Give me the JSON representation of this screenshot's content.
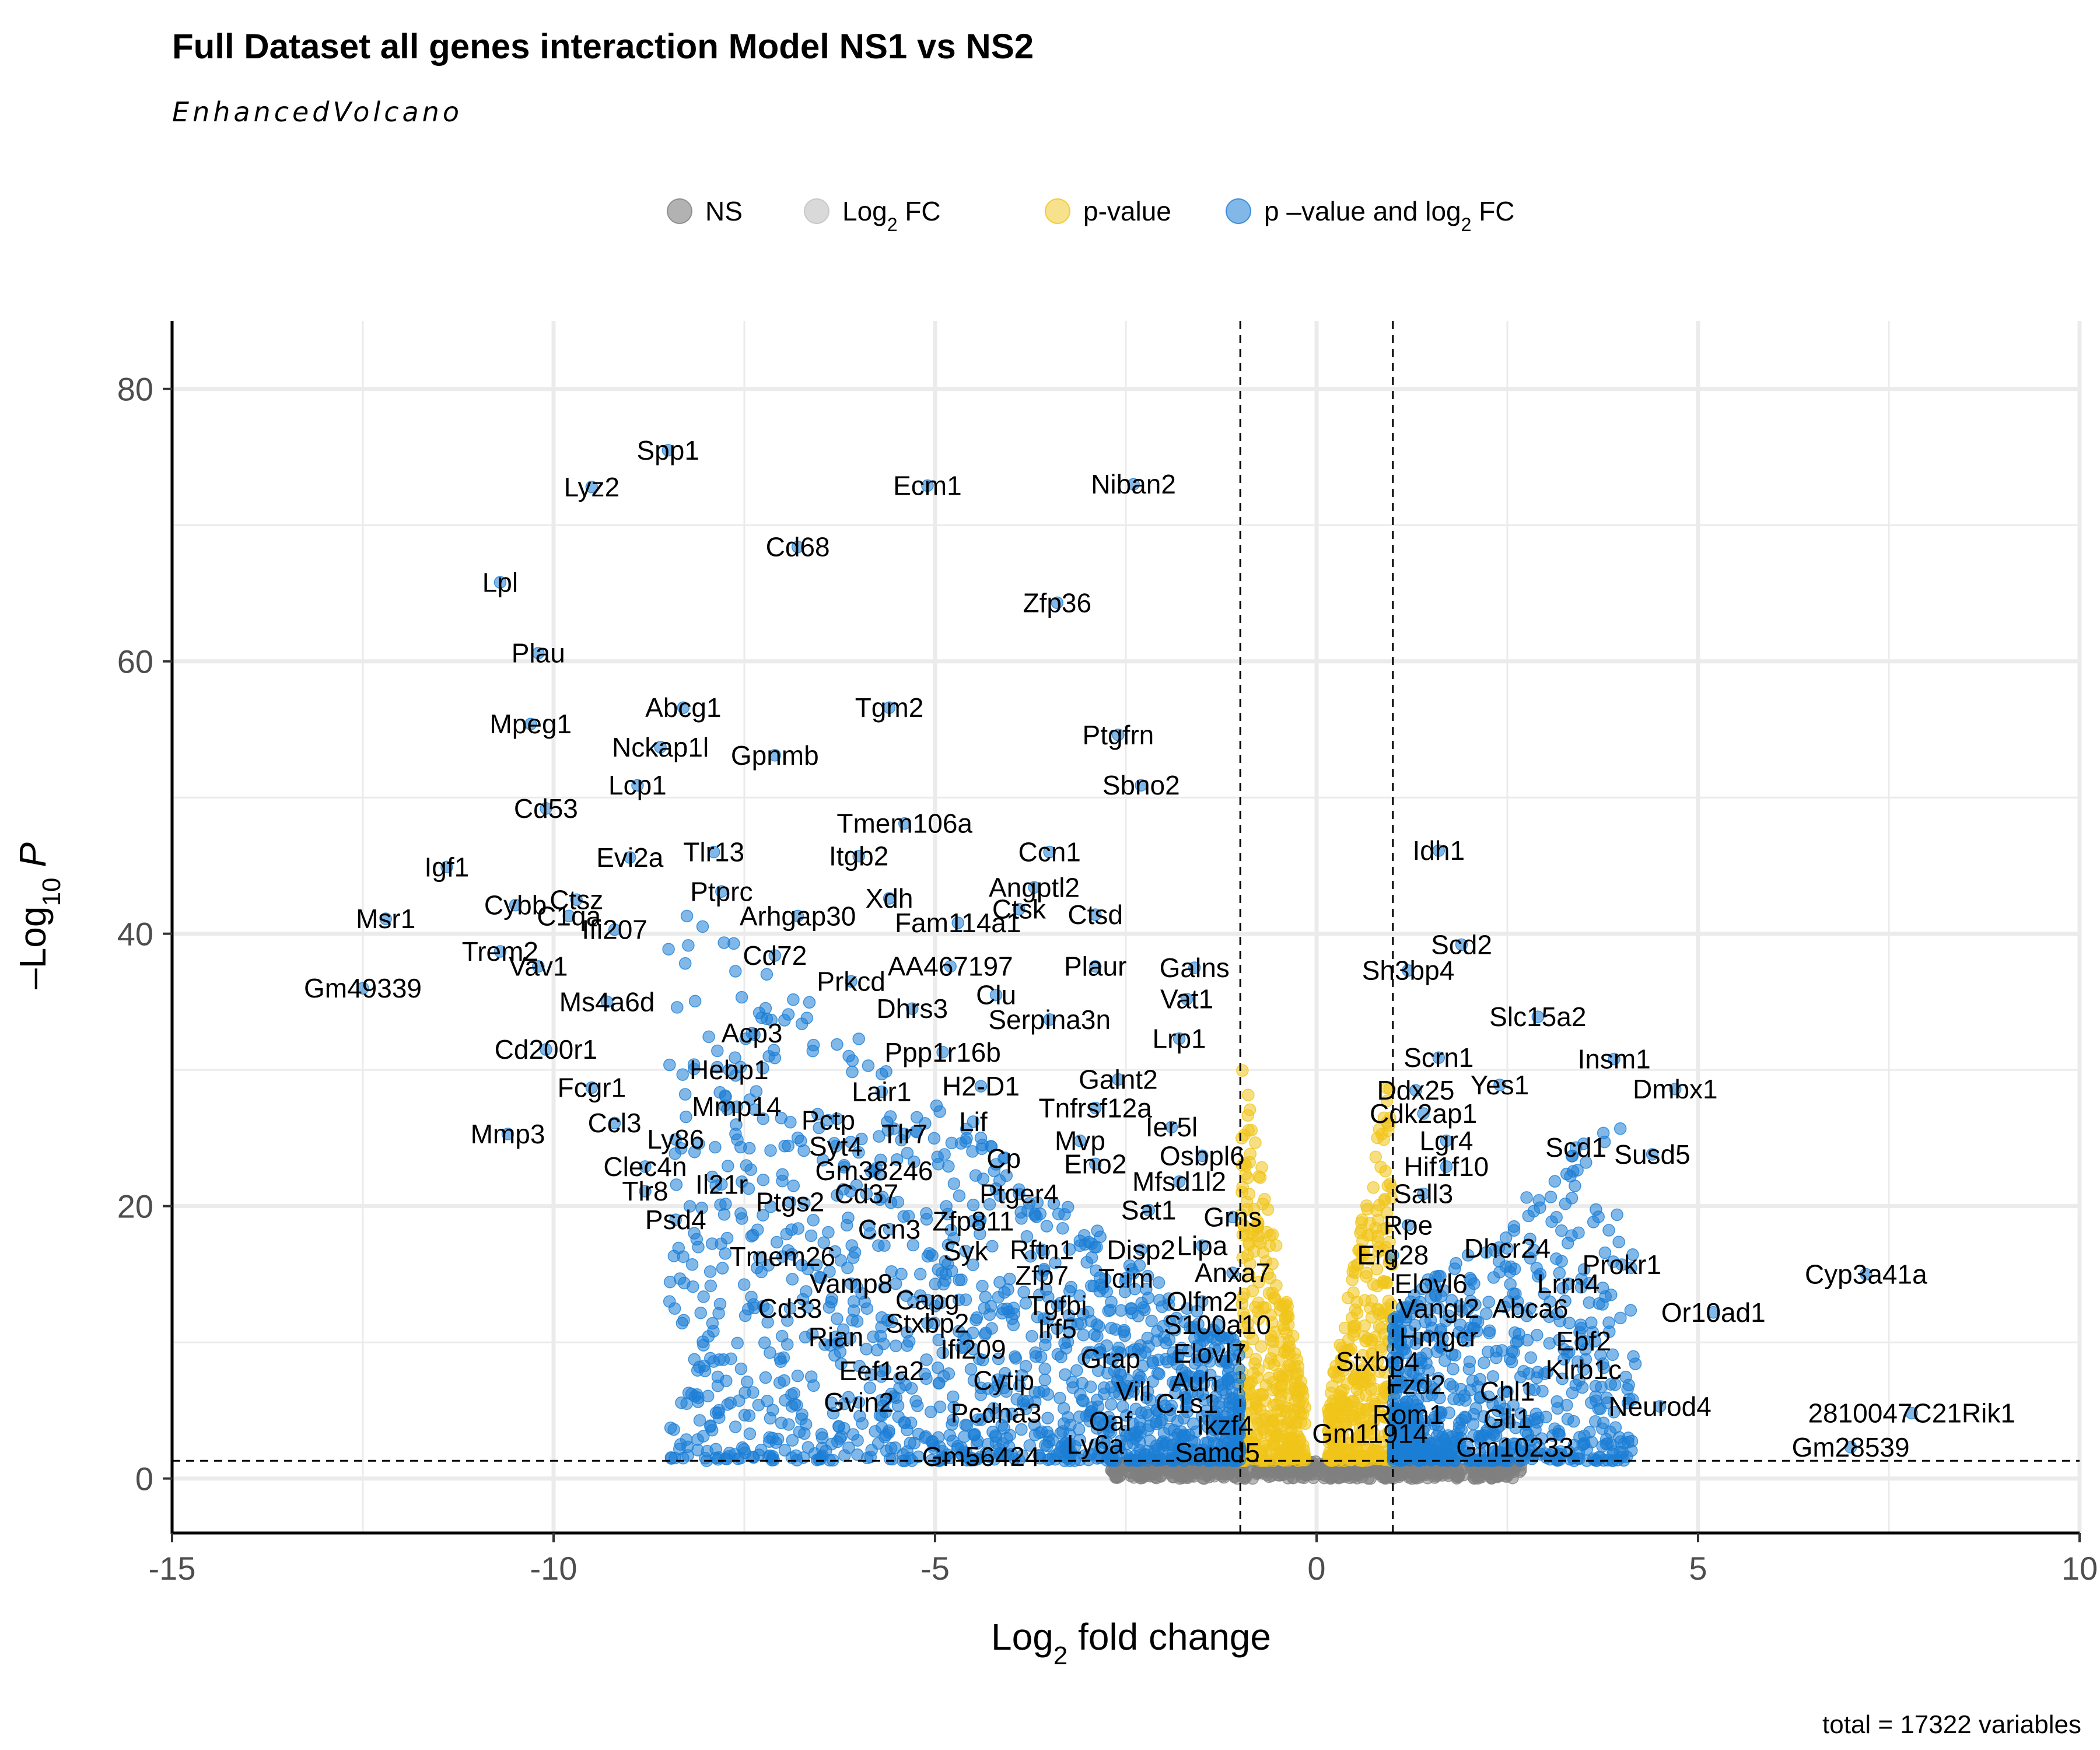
{
  "chart_data": {
    "type": "scatter",
    "title": "Full Dataset all genes interaction Model NS1 vs NS2",
    "subtitle": "EnhancedVolcano",
    "xlabel": "Log2 fold change",
    "ylabel": "-Log10 P",
    "xlim": [
      -15,
      10
    ],
    "ylim": [
      -4,
      85
    ],
    "xticks": [
      -15,
      -10,
      -5,
      0,
      5,
      10
    ],
    "yticks": [
      0,
      20,
      40,
      60,
      80
    ],
    "tick_labels_x": [
      "-15",
      "-10",
      "-5",
      "0",
      "5",
      "10"
    ],
    "tick_labels_y": [
      "0",
      "20",
      "40",
      "60",
      "80"
    ],
    "grid": true,
    "legend_position": "top",
    "thresholds": {
      "log2fc": [
        -1,
        1
      ],
      "neg_log10_p": 1.3
    },
    "caption": "total = 17322 variables",
    "legend": [
      {
        "name": "NS",
        "color": "#7f7f7f"
      },
      {
        "name": "Log2 FC",
        "color": "#bfbfbf"
      },
      {
        "name": "p-value",
        "color": "#f0c419"
      },
      {
        "name": "p –value and log2 FC",
        "color": "#1c7ed6"
      }
    ],
    "labeled_genes": [
      {
        "name": "Spp1",
        "x": -8.5,
        "y": 75.5
      },
      {
        "name": "Lyz2",
        "x": -9.5,
        "y": 72.8
      },
      {
        "name": "Ecm1",
        "x": -5.1,
        "y": 72.9
      },
      {
        "name": "Niban2",
        "x": -2.4,
        "y": 73.0
      },
      {
        "name": "Cd68",
        "x": -6.8,
        "y": 68.4
      },
      {
        "name": "Lpl",
        "x": -10.7,
        "y": 65.8
      },
      {
        "name": "Zfp36",
        "x": -3.4,
        "y": 64.3
      },
      {
        "name": "Plau",
        "x": -10.2,
        "y": 60.6
      },
      {
        "name": "Abcg1",
        "x": -8.3,
        "y": 56.6
      },
      {
        "name": "Tgm2",
        "x": -5.6,
        "y": 56.6
      },
      {
        "name": "Mpeg1",
        "x": -10.3,
        "y": 55.4
      },
      {
        "name": "Ptgfrn",
        "x": -2.6,
        "y": 54.6
      },
      {
        "name": "Nckap1l",
        "x": -8.6,
        "y": 53.7
      },
      {
        "name": "Gpnmb",
        "x": -7.1,
        "y": 53.1
      },
      {
        "name": "Sbno2",
        "x": -2.3,
        "y": 50.9
      },
      {
        "name": "Lcp1",
        "x": -8.9,
        "y": 50.9
      },
      {
        "name": "Cd53",
        "x": -10.1,
        "y": 49.2
      },
      {
        "name": "Tmem106a",
        "x": -5.4,
        "y": 48.1
      },
      {
        "name": "Ccn1",
        "x": -3.5,
        "y": 46.0
      },
      {
        "name": "Tlr13",
        "x": -7.9,
        "y": 46.0
      },
      {
        "name": "Itgb2",
        "x": -6.0,
        "y": 45.7
      },
      {
        "name": "Evi2a",
        "x": -9.0,
        "y": 45.6
      },
      {
        "name": "Idh1",
        "x": 1.6,
        "y": 46.1
      },
      {
        "name": "Igf1",
        "x": -11.4,
        "y": 44.9
      },
      {
        "name": "Ptprc",
        "x": -7.8,
        "y": 43.1
      },
      {
        "name": "Angptl2",
        "x": -3.7,
        "y": 43.4
      },
      {
        "name": "Xdh",
        "x": -5.6,
        "y": 42.6
      },
      {
        "name": "Ctsz",
        "x": -9.7,
        "y": 42.5
      },
      {
        "name": "Cybb",
        "x": -10.5,
        "y": 42.1
      },
      {
        "name": "Ctsk",
        "x": -3.9,
        "y": 41.8
      },
      {
        "name": "C1qa",
        "x": -9.8,
        "y": 41.3
      },
      {
        "name": "Msr1",
        "x": -12.2,
        "y": 41.1
      },
      {
        "name": "Arhgap30",
        "x": -6.8,
        "y": 41.3
      },
      {
        "name": "Ctsd",
        "x": -2.9,
        "y": 41.4
      },
      {
        "name": "Ifi207",
        "x": -9.2,
        "y": 40.3
      },
      {
        "name": "Fam114a1",
        "x": -4.7,
        "y": 40.8
      },
      {
        "name": "Trem2",
        "x": -10.7,
        "y": 38.7
      },
      {
        "name": "Scd2",
        "x": 1.9,
        "y": 39.2
      },
      {
        "name": "Cd72",
        "x": -7.1,
        "y": 38.4
      },
      {
        "name": "Plaur",
        "x": -2.9,
        "y": 37.6
      },
      {
        "name": "Vav1",
        "x": -10.2,
        "y": 37.6
      },
      {
        "name": "AA467197",
        "x": -4.8,
        "y": 37.6
      },
      {
        "name": "Galns",
        "x": -1.6,
        "y": 37.5
      },
      {
        "name": "Sh3bp4",
        "x": 1.2,
        "y": 37.3
      },
      {
        "name": "Prkcd",
        "x": -6.1,
        "y": 36.5
      },
      {
        "name": "Gm49339",
        "x": -12.5,
        "y": 36.0
      },
      {
        "name": "Clu",
        "x": -4.2,
        "y": 35.5
      },
      {
        "name": "Vat1",
        "x": -1.7,
        "y": 35.2
      },
      {
        "name": "Ms4a6d",
        "x": -9.3,
        "y": 35.0
      },
      {
        "name": "Dhrs3",
        "x": -5.3,
        "y": 34.5
      },
      {
        "name": "Slc15a2",
        "x": 2.9,
        "y": 33.9
      },
      {
        "name": "Serpina3n",
        "x": -3.5,
        "y": 33.7
      },
      {
        "name": "Acp3",
        "x": -7.4,
        "y": 32.7
      },
      {
        "name": "Lrp1",
        "x": -1.8,
        "y": 32.3
      },
      {
        "name": "Ppp1r16b",
        "x": -4.9,
        "y": 31.3
      },
      {
        "name": "Cd200r1",
        "x": -10.1,
        "y": 31.5
      },
      {
        "name": "Scrn1",
        "x": 1.6,
        "y": 30.9
      },
      {
        "name": "Insm1",
        "x": 3.9,
        "y": 30.8
      },
      {
        "name": "Hebp1",
        "x": -7.7,
        "y": 30.0
      },
      {
        "name": "Galnt2",
        "x": -2.6,
        "y": 29.3
      },
      {
        "name": "H2-D1",
        "x": -4.4,
        "y": 28.8
      },
      {
        "name": "Fcgr1",
        "x": -9.5,
        "y": 28.7
      },
      {
        "name": "Yes1",
        "x": 2.4,
        "y": 28.9
      },
      {
        "name": "Dmbx1",
        "x": 4.7,
        "y": 28.6
      },
      {
        "name": "Lair1",
        "x": -5.7,
        "y": 28.4
      },
      {
        "name": "Ddx25",
        "x": 1.3,
        "y": 28.5
      },
      {
        "name": "Tnfrsf12a",
        "x": -2.9,
        "y": 27.2
      },
      {
        "name": "Mmp14",
        "x": -7.6,
        "y": 27.3
      },
      {
        "name": "Cdk2ap1",
        "x": 1.4,
        "y": 26.8
      },
      {
        "name": "Pctp",
        "x": -6.4,
        "y": 26.3
      },
      {
        "name": "Ccl3",
        "x": -9.2,
        "y": 26.1
      },
      {
        "name": "Lif",
        "x": -4.5,
        "y": 26.2
      },
      {
        "name": "Ier5l",
        "x": -1.9,
        "y": 25.8
      },
      {
        "name": "Tlr7",
        "x": -5.4,
        "y": 25.3
      },
      {
        "name": "Mmp3",
        "x": -10.6,
        "y": 25.3
      },
      {
        "name": "Ly86",
        "x": -8.4,
        "y": 24.9
      },
      {
        "name": "Mvp",
        "x": -3.1,
        "y": 24.8
      },
      {
        "name": "Lgr4",
        "x": 1.7,
        "y": 24.8
      },
      {
        "name": "Scd1",
        "x": 3.4,
        "y": 24.3
      },
      {
        "name": "Syt4",
        "x": -6.3,
        "y": 24.4
      },
      {
        "name": "Susd5",
        "x": 4.4,
        "y": 23.8
      },
      {
        "name": "Osbpl6",
        "x": -1.5,
        "y": 23.7
      },
      {
        "name": "Cp",
        "x": -4.1,
        "y": 23.5
      },
      {
        "name": "Eno2",
        "x": -2.9,
        "y": 23.1
      },
      {
        "name": "Hif1f10",
        "x": 1.7,
        "y": 22.9
      },
      {
        "name": "Clec4n",
        "x": -8.8,
        "y": 22.9
      },
      {
        "name": "Gm38246",
        "x": -5.8,
        "y": 22.6
      },
      {
        "name": "Mfsd1l2",
        "x": -1.8,
        "y": 21.8
      },
      {
        "name": "Il21r",
        "x": -7.8,
        "y": 21.6
      },
      {
        "name": "Tlr8",
        "x": -8.8,
        "y": 21.1
      },
      {
        "name": "Cd37",
        "x": -5.9,
        "y": 20.9
      },
      {
        "name": "Ptger4",
        "x": -3.9,
        "y": 20.9
      },
      {
        "name": "Sall3",
        "x": 1.4,
        "y": 20.9
      },
      {
        "name": "Ptgs2",
        "x": -6.9,
        "y": 20.3
      },
      {
        "name": "Sat1",
        "x": -2.2,
        "y": 19.7
      },
      {
        "name": "Psd4",
        "x": -8.4,
        "y": 19.0
      },
      {
        "name": "Grns",
        "x": -1.1,
        "y": 19.2
      },
      {
        "name": "Zfp811",
        "x": -4.5,
        "y": 18.9
      },
      {
        "name": "Ccn3",
        "x": -5.6,
        "y": 18.3
      },
      {
        "name": "Rpe",
        "x": 1.2,
        "y": 18.6
      },
      {
        "name": "Dhcr24",
        "x": 2.5,
        "y": 16.9
      },
      {
        "name": "Syk",
        "x": -4.6,
        "y": 16.7
      },
      {
        "name": "Rftn1",
        "x": -3.6,
        "y": 16.8
      },
      {
        "name": "Disp2",
        "x": -2.3,
        "y": 16.8
      },
      {
        "name": "Lipa",
        "x": -1.5,
        "y": 17.1
      },
      {
        "name": "Tmem26",
        "x": -7.0,
        "y": 16.3
      },
      {
        "name": "Erg28",
        "x": 1.0,
        "y": 16.4
      },
      {
        "name": "Prokr1",
        "x": 4.0,
        "y": 15.7
      },
      {
        "name": "Cyp3a41a",
        "x": 7.2,
        "y": 15.0
      },
      {
        "name": "Anxa7",
        "x": -1.1,
        "y": 15.1
      },
      {
        "name": "Zfp7",
        "x": -3.6,
        "y": 14.9
      },
      {
        "name": "Tcim",
        "x": -2.5,
        "y": 14.7
      },
      {
        "name": "Lrrn4",
        "x": 3.3,
        "y": 14.3
      },
      {
        "name": "Elovl6",
        "x": 1.5,
        "y": 14.3
      },
      {
        "name": "Vamp8",
        "x": -6.1,
        "y": 14.3
      },
      {
        "name": "Olfm2",
        "x": -1.5,
        "y": 13.0
      },
      {
        "name": "Capg",
        "x": -5.1,
        "y": 13.1
      },
      {
        "name": "Tgfbi",
        "x": -3.4,
        "y": 12.7
      },
      {
        "name": "Vangl2",
        "x": 1.6,
        "y": 12.5
      },
      {
        "name": "Abca6",
        "x": 2.8,
        "y": 12.5
      },
      {
        "name": "Cd33",
        "x": -6.9,
        "y": 12.5
      },
      {
        "name": "Or10ad1",
        "x": 5.2,
        "y": 12.2
      },
      {
        "name": "S100a10",
        "x": -1.3,
        "y": 11.3
      },
      {
        "name": "Stxbp2",
        "x": -5.1,
        "y": 11.4
      },
      {
        "name": "Irf5",
        "x": -3.4,
        "y": 11.0
      },
      {
        "name": "Hmgcr",
        "x": 1.6,
        "y": 10.4
      },
      {
        "name": "Ebf2",
        "x": 3.5,
        "y": 10.1
      },
      {
        "name": "Rian",
        "x": -6.3,
        "y": 10.4
      },
      {
        "name": "Ifi209",
        "x": -4.5,
        "y": 9.5
      },
      {
        "name": "Elovl7",
        "x": -1.4,
        "y": 9.2
      },
      {
        "name": "Grap",
        "x": -2.7,
        "y": 8.8
      },
      {
        "name": "Stxbp4",
        "x": 0.8,
        "y": 8.6
      },
      {
        "name": "Klrb1c",
        "x": 3.5,
        "y": 8.0
      },
      {
        "name": "Eef1a2",
        "x": -5.7,
        "y": 7.9
      },
      {
        "name": "Cytip",
        "x": -4.1,
        "y": 7.2
      },
      {
        "name": "Auh",
        "x": -1.6,
        "y": 7.1
      },
      {
        "name": "Vill",
        "x": -2.4,
        "y": 6.4
      },
      {
        "name": "Fzd2",
        "x": 1.3,
        "y": 6.9
      },
      {
        "name": "Chl1",
        "x": 2.5,
        "y": 6.4
      },
      {
        "name": "Gvin2",
        "x": -6.0,
        "y": 5.6
      },
      {
        "name": "C1s1",
        "x": -1.7,
        "y": 5.5
      },
      {
        "name": "Neurod4",
        "x": 4.5,
        "y": 5.3
      },
      {
        "name": "Pcdha3",
        "x": -4.2,
        "y": 4.8
      },
      {
        "name": "Rom1",
        "x": 1.2,
        "y": 4.7
      },
      {
        "name": "2810047C21Rik1",
        "x": 7.8,
        "y": 4.8
      },
      {
        "name": "Oaf",
        "x": -2.7,
        "y": 4.2
      },
      {
        "name": "Gli1",
        "x": 2.5,
        "y": 4.4
      },
      {
        "name": "Ikzf4",
        "x": -1.2,
        "y": 3.9
      },
      {
        "name": "Gm11914",
        "x": 0.7,
        "y": 3.3
      },
      {
        "name": "Ly6a",
        "x": -2.9,
        "y": 2.5
      },
      {
        "name": "Gm10233",
        "x": 2.6,
        "y": 2.3
      },
      {
        "name": "Gm28539",
        "x": 7.0,
        "y": 2.3
      },
      {
        "name": "Samd5",
        "x": -1.3,
        "y": 1.9
      },
      {
        "name": "Gm56424",
        "x": -4.4,
        "y": 1.6
      }
    ]
  }
}
